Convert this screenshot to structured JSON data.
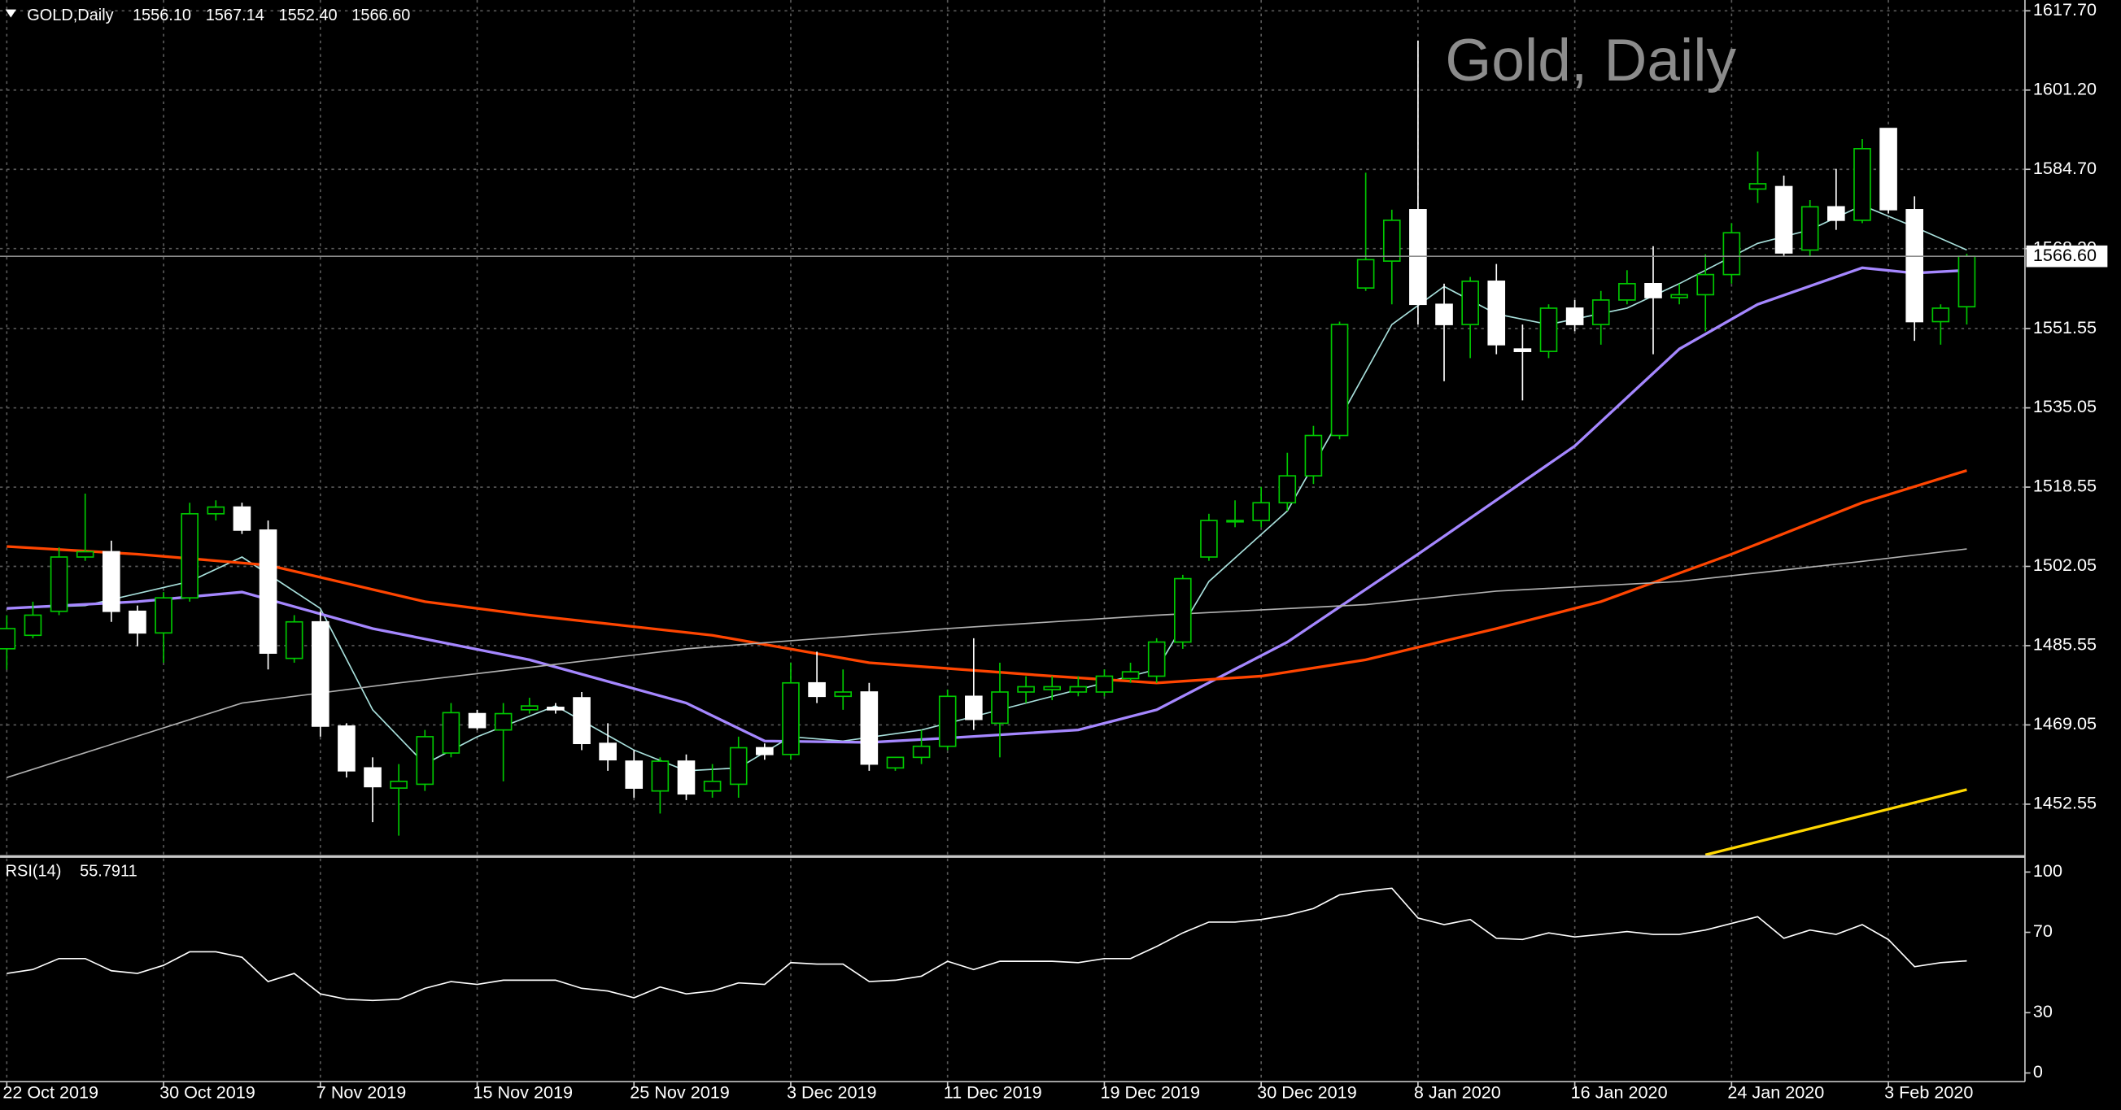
{
  "chart_data": {
    "type": "candlestick",
    "title": "Gold, Daily",
    "header": "GOLD,Daily",
    "header_values": [
      "1556.10",
      "1567.14",
      "1552.40",
      "1566.60"
    ],
    "categories": [
      "22 Oct 2019",
      null,
      null,
      null,
      null,
      null,
      "30 Oct 2019",
      null,
      null,
      null,
      null,
      null,
      "7 Nov 2019",
      null,
      null,
      null,
      null,
      null,
      "15 Nov 2019",
      null,
      null,
      null,
      null,
      null,
      "25 Nov 2019",
      null,
      null,
      null,
      null,
      null,
      "3 Dec 2019",
      null,
      null,
      null,
      null,
      null,
      "11 Dec 2019",
      null,
      null,
      null,
      null,
      null,
      "19 Dec 2019",
      null,
      null,
      null,
      null,
      null,
      "30 Dec 2019",
      null,
      null,
      null,
      null,
      null,
      "8 Jan 2020",
      null,
      null,
      null,
      null,
      null,
      "16 Jan 2020",
      null,
      null,
      null,
      null,
      null,
      "24 Jan 2020",
      null,
      null,
      null,
      null,
      null,
      "3 Feb 2020",
      null,
      null,
      null
    ],
    "open": [
      1484.9,
      1487.7,
      1492.7,
      1504.0,
      1505.1,
      1492.7,
      1488.2,
      1495.5,
      1513.0,
      1514.4,
      1509.6,
      1482.9,
      1490.5,
      1468.8,
      1460.1,
      1455.9,
      1456.7,
      1463.2,
      1471.4,
      1468.0,
      1472.2,
      1472.7,
      1474.7,
      1465.2,
      1461.5,
      1455.3,
      1461.5,
      1455.3,
      1456.7,
      1464.3,
      1462.9,
      1477.8,
      1475.0,
      1475.9,
      1460.1,
      1462.3,
      1464.6,
      1475.0,
      1469.4,
      1475.9,
      1476.4,
      1475.9,
      1475.9,
      1478.7,
      1479.2,
      1486.3,
      1504.0,
      1511.6,
      1511.6,
      1515.3,
      1520.9,
      1529.3,
      1560.0,
      1565.6,
      1576.3,
      1556.6,
      1552.4,
      1561.4,
      1547.3,
      1546.8,
      1555.8,
      1552.4,
      1557.5,
      1560.9,
      1558.0,
      1558.6,
      1562.8,
      1580.6,
      1581.1,
      1567.9,
      1576.9,
      1574.1,
      1593.2,
      1576.3,
      1553.0,
      1556.1
    ],
    "high": [
      1491.9,
      1494.7,
      1506.0,
      1517.2,
      1507.4,
      1493.9,
      1496.7,
      1515.3,
      1515.8,
      1515.3,
      1511.6,
      1491.9,
      1492.7,
      1469.4,
      1462.3,
      1460.9,
      1468.0,
      1473.6,
      1472.2,
      1473.6,
      1474.7,
      1473.6,
      1475.9,
      1469.4,
      1463.8,
      1462.3,
      1462.9,
      1460.9,
      1466.6,
      1465.2,
      1482.0,
      1484.3,
      1480.6,
      1477.8,
      1462.3,
      1468.0,
      1476.4,
      1487.1,
      1482.0,
      1479.2,
      1479.2,
      1479.2,
      1480.6,
      1482.0,
      1487.1,
      1500.3,
      1513.0,
      1515.8,
      1518.6,
      1525.7,
      1531.3,
      1553.0,
      1584.0,
      1576.3,
      1611.5,
      1560.9,
      1562.3,
      1565.0,
      1552.4,
      1556.6,
      1557.5,
      1559.4,
      1563.7,
      1568.7,
      1560.9,
      1567.0,
      1573.5,
      1588.4,
      1583.4,
      1578.3,
      1584.8,
      1591.0,
      1593.2,
      1579.1,
      1556.6,
      1567.14
    ],
    "low": [
      1480.6,
      1487.1,
      1491.9,
      1503.2,
      1490.5,
      1485.4,
      1482.0,
      1494.7,
      1511.6,
      1508.8,
      1480.6,
      1482.0,
      1466.6,
      1458.1,
      1448.8,
      1446.0,
      1455.3,
      1462.3,
      1468.0,
      1457.3,
      1471.4,
      1471.4,
      1463.8,
      1459.5,
      1453.9,
      1450.6,
      1453.4,
      1453.9,
      1453.9,
      1461.8,
      1461.8,
      1473.6,
      1472.2,
      1459.5,
      1459.5,
      1460.9,
      1463.8,
      1468.0,
      1462.3,
      1473.6,
      1474.2,
      1475.0,
      1475.0,
      1477.8,
      1477.8,
      1484.9,
      1503.2,
      1510.2,
      1510.2,
      1513.6,
      1519.2,
      1528.5,
      1559.4,
      1556.6,
      1552.4,
      1540.6,
      1545.4,
      1546.2,
      1536.6,
      1545.4,
      1551.0,
      1548.2,
      1556.6,
      1546.2,
      1556.6,
      1551.0,
      1560.9,
      1577.7,
      1566.5,
      1566.5,
      1572.1,
      1573.5,
      1575.5,
      1549.0,
      1548.2,
      1552.4
    ],
    "close": [
      1489.1,
      1491.9,
      1504.0,
      1505.1,
      1492.7,
      1488.2,
      1495.5,
      1513.0,
      1514.4,
      1509.6,
      1484.0,
      1490.5,
      1468.8,
      1459.5,
      1456.2,
      1457.3,
      1466.6,
      1471.6,
      1468.5,
      1471.4,
      1473.0,
      1472.2,
      1465.2,
      1461.8,
      1455.9,
      1461.5,
      1454.7,
      1457.3,
      1464.3,
      1462.9,
      1477.8,
      1475.0,
      1475.9,
      1460.9,
      1462.3,
      1464.6,
      1475.0,
      1470.2,
      1475.9,
      1477.0,
      1477.0,
      1477.0,
      1479.2,
      1480.1,
      1486.3,
      1499.5,
      1511.6,
      1511.6,
      1515.3,
      1520.9,
      1529.3,
      1552.4,
      1565.9,
      1574.1,
      1556.6,
      1552.4,
      1561.4,
      1548.2,
      1546.8,
      1555.8,
      1552.4,
      1557.5,
      1560.9,
      1558.0,
      1558.6,
      1562.8,
      1571.5,
      1581.7,
      1567.3,
      1576.9,
      1574.1,
      1589.0,
      1576.3,
      1553.0,
      1555.8,
      1566.6
    ],
    "up_color": "#00c800",
    "down_color": "#ffffff",
    "ylim": [
      1441.8,
      1619.95
    ],
    "yticks": [
      {
        "value": 1452.55,
        "label": "1452.55"
      },
      {
        "value": 1469.05,
        "label": "1469.05"
      },
      {
        "value": 1485.55,
        "label": "1485.55"
      },
      {
        "value": 1502.05,
        "label": "1502.05"
      },
      {
        "value": 1518.55,
        "label": "1518.55"
      },
      {
        "value": 1535.05,
        "label": "1535.05"
      },
      {
        "value": 1551.55,
        "label": "1551.55"
      },
      {
        "value": 1568.2,
        "label": "1568.20"
      },
      {
        "value": 1584.7,
        "label": "1584.70"
      },
      {
        "value": 1601.2,
        "label": "1601.20"
      },
      {
        "value": 1617.7,
        "label": "1617.70"
      }
    ],
    "grid": true,
    "current_price": {
      "value": 1566.6,
      "label": "1566.60"
    },
    "moving_averages": [
      {
        "color": "#a8e0dc",
        "x": [
          0,
          3,
          7,
          9,
          12,
          14,
          16,
          18,
          21,
          24,
          26,
          28,
          30,
          32,
          35,
          38,
          41,
          44,
          46,
          49,
          51,
          53,
          55,
          57,
          59,
          62,
          64,
          67,
          69,
          71,
          73,
          75
        ],
        "values": [
          1493.3,
          1493.9,
          1498.9,
          1504.0,
          1493.3,
          1472.2,
          1460.9,
          1466.6,
          1473.0,
          1463.8,
          1459.5,
          1460.1,
          1466.6,
          1465.7,
          1468.0,
          1472.2,
          1476.4,
          1480.6,
          1498.9,
          1513.6,
          1532.7,
          1552.4,
          1560.3,
          1554.6,
          1552.4,
          1555.8,
          1560.9,
          1569.3,
          1572.1,
          1577.2,
          1572.7,
          1567.9
        ]
      },
      {
        "color": "#a587ff",
        "x": [
          0,
          5,
          9,
          14,
          20,
          26,
          29,
          33,
          36,
          41,
          44,
          49,
          54,
          60,
          64,
          67,
          71,
          73,
          75
        ],
        "values": [
          1493.3,
          1494.7,
          1496.7,
          1489.1,
          1482.6,
          1473.6,
          1465.7,
          1465.4,
          1466.3,
          1468.0,
          1472.2,
          1486.3,
          1504.6,
          1527.1,
          1547.3,
          1556.6,
          1564.2,
          1563.1,
          1563.7
        ]
      },
      {
        "color": "#ff4500",
        "x": [
          0,
          5,
          10,
          16,
          20,
          27,
          33,
          40,
          44,
          48,
          52,
          57,
          61,
          66,
          71,
          75
        ],
        "values": [
          1506.2,
          1504.6,
          1502.3,
          1494.7,
          1491.9,
          1487.7,
          1482.0,
          1479.2,
          1477.8,
          1479.2,
          1482.6,
          1489.1,
          1494.7,
          1504.6,
          1515.3,
          1522.0
        ]
      },
      {
        "color": "#b0b0b0",
        "x": [
          0,
          9,
          15,
          26,
          36,
          44,
          52,
          57,
          64,
          71,
          75
        ],
        "values": [
          1458.1,
          1473.6,
          1477.8,
          1484.9,
          1489.1,
          1491.9,
          1494.1,
          1496.9,
          1498.9,
          1503.1,
          1505.7
        ]
      },
      {
        "color": "#ffd700",
        "x": [
          65,
          75
        ],
        "values": [
          1442.0,
          1455.6
        ]
      }
    ],
    "rsi": {
      "name": "RSI(14)",
      "color": "#ffffff",
      "ylim": [
        -4.3,
        107.4
      ],
      "yticks": [
        0,
        30,
        70,
        100
      ],
      "values": [
        49.5,
        51.5,
        56.9,
        56.9,
        50.9,
        49.5,
        53.6,
        60.3,
        60.3,
        57.6,
        45.5,
        49.5,
        39.4,
        36.7,
        36.1,
        36.7,
        42.1,
        45.5,
        44.1,
        46.2,
        46.2,
        46.2,
        42.1,
        40.8,
        37.4,
        42.8,
        39.4,
        40.8,
        44.8,
        44.1,
        54.9,
        54.2,
        54.2,
        45.5,
        46.2,
        48.2,
        55.6,
        51.5,
        55.6,
        55.6,
        55.6,
        54.9,
        56.9,
        56.9,
        63.0,
        69.7,
        75.1,
        75.1,
        76.4,
        78.5,
        81.8,
        88.6,
        90.6,
        91.9,
        77.1,
        73.8,
        76.4,
        67.0,
        66.4,
        69.7,
        67.7,
        69.0,
        70.4,
        69.0,
        69.0,
        71.1,
        74.4,
        77.8,
        67.0,
        71.1,
        69.0,
        73.8,
        66.4,
        52.9,
        54.9,
        55.7911
      ]
    }
  }
}
